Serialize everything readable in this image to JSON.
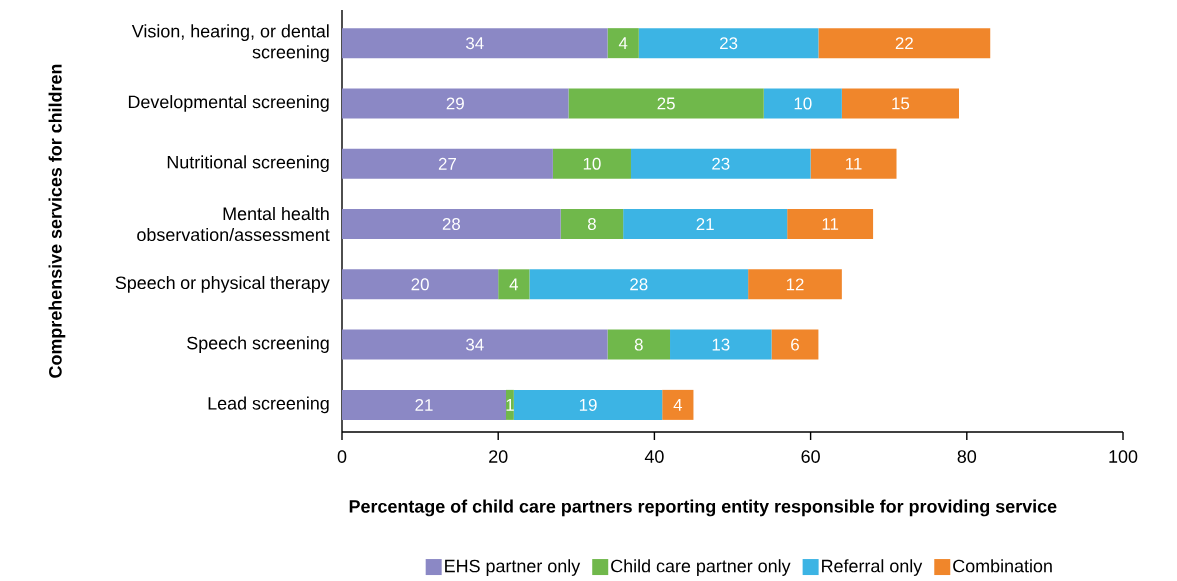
{
  "chart_data": {
    "type": "bar",
    "orientation": "horizontal",
    "stacked": true,
    "categories": [
      "Vision, hearing, or dental screening",
      "Developmental screening",
      "Nutritional screening",
      "Mental health observation/assessment",
      "Speech or physical therapy",
      "Speech screening",
      "Lead screening"
    ],
    "series": [
      {
        "name": "EHS partner only",
        "color": "#8b88c5",
        "values": [
          34,
          29,
          27,
          28,
          20,
          34,
          21
        ]
      },
      {
        "name": "Child care partner only",
        "color": "#70b84b",
        "values": [
          4,
          25,
          10,
          8,
          4,
          8,
          1
        ]
      },
      {
        "name": "Referral only",
        "color": "#3cb4e4",
        "values": [
          23,
          10,
          23,
          21,
          28,
          13,
          19
        ]
      },
      {
        "name": "Combination",
        "color": "#f0862b",
        "values": [
          22,
          15,
          11,
          11,
          12,
          6,
          4
        ]
      }
    ],
    "xlabel": "Percentage of child care partners reporting entity responsible for providing service",
    "ylabel": "Comprehensive services for children",
    "xlim": [
      0,
      100
    ],
    "xticks": [
      0,
      20,
      40,
      60,
      80,
      100
    ],
    "data_labels": true,
    "legend": "bottom"
  }
}
